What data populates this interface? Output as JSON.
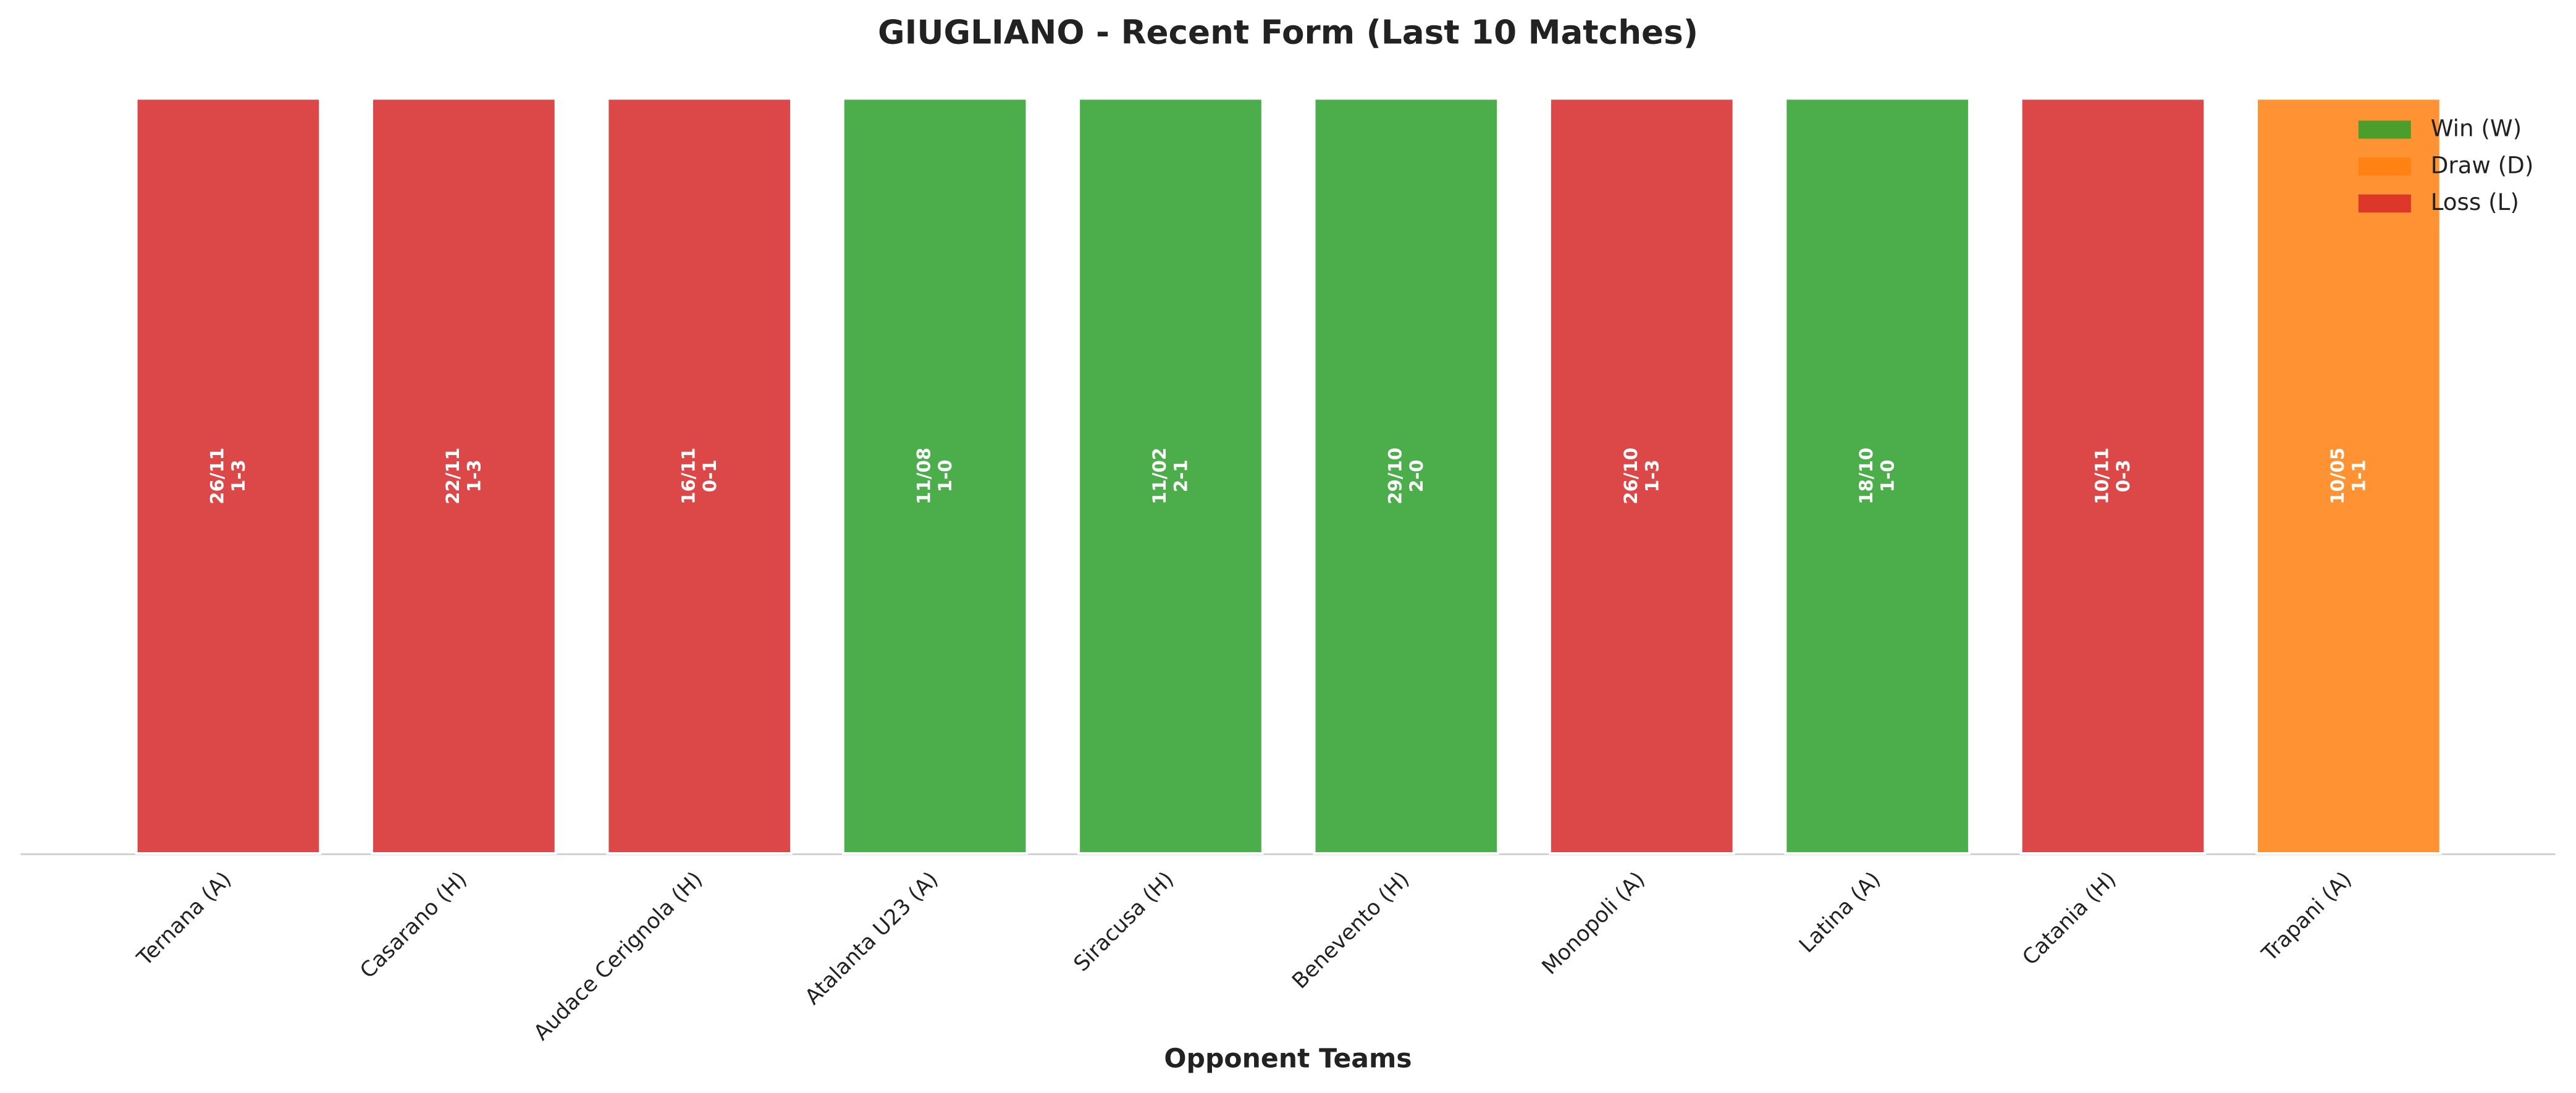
{
  "chart_data": {
    "type": "bar",
    "title": "GIUGLIANO - Recent Form (Last 10 Matches)",
    "x_label": "Opponent Teams",
    "categories": [
      "Ternana (A)",
      "Casarano (H)",
      "Audace Cerignola (H)",
      "Atalanta U23 (A)",
      "Siracusa (H)",
      "Benevento (H)",
      "Monopoli (A)",
      "Latina (A)",
      "Catania (H)",
      "Trapani (A)"
    ],
    "values": [
      1,
      1,
      1,
      1,
      1,
      1,
      1,
      1,
      1,
      1
    ],
    "colors": [
      "#d62728",
      "#d62728",
      "#d62728",
      "#2ca02c",
      "#2ca02c",
      "#2ca02c",
      "#d62728",
      "#2ca02c",
      "#d62728",
      "#ff7f0e"
    ],
    "bar_labels": [
      [
        "26/11",
        "1-3"
      ],
      [
        "22/11",
        "1-3"
      ],
      [
        "16/11",
        "0-1"
      ],
      [
        "11/08",
        "1-0"
      ],
      [
        "11/02",
        "2-1"
      ],
      [
        "29/10",
        "2-0"
      ],
      [
        "26/10",
        "1-3"
      ],
      [
        "18/10",
        "1-0"
      ],
      [
        "10/11",
        "0-3"
      ],
      [
        "10/05",
        "1-1"
      ]
    ],
    "ylim": [
      0,
      1
    ],
    "legend": {
      "position": "upper right",
      "entries": [
        {
          "label": "Win (W)",
          "color": "#2ca02c"
        },
        {
          "label": "Draw (D)",
          "color": "#ff7f0e"
        },
        {
          "label": "Loss (L)",
          "color": "#d62728"
        }
      ]
    }
  }
}
